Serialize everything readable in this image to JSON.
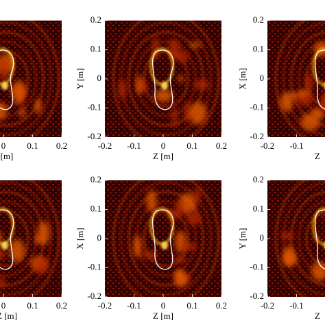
{
  "chart_data": [
    {
      "type": "heatmap",
      "xlim": [
        -0.2,
        0.2
      ],
      "ylim": [
        -0.2,
        0.2
      ],
      "xticks": [
        0,
        0.1,
        0.2
      ],
      "yticks": [],
      "xlabel": "[m]"
    },
    {
      "type": "heatmap",
      "xlim": [
        -0.2,
        0.2
      ],
      "ylim": [
        -0.2,
        0.2
      ],
      "xticks": [
        -0.2,
        -0.1,
        0,
        0.1,
        0.2
      ],
      "yticks": [
        0.2,
        0.1,
        0,
        -0.1,
        -0.2
      ],
      "xlabel": "Z [m]",
      "ylabel": "Y [m]"
    },
    {
      "type": "heatmap",
      "xlim": [
        -0.2,
        0.2
      ],
      "ylim": [
        -0.2,
        0.2
      ],
      "xticks": [
        -0.2,
        -0.1
      ],
      "yticks": [
        0.2,
        0.1,
        0,
        -0.1,
        -0.2
      ],
      "xlabel": "Z",
      "ylabel": "X [m]"
    },
    {
      "type": "heatmap",
      "xlim": [
        -0.2,
        0.2
      ],
      "ylim": [
        -0.2,
        0.2
      ],
      "xticks": [
        0,
        0.1,
        0.2
      ],
      "yticks": [],
      "xlabel": "Z [m]"
    },
    {
      "type": "heatmap",
      "xlim": [
        -0.2,
        0.2
      ],
      "ylim": [
        -0.2,
        0.2
      ],
      "xticks": [
        -0.2,
        -0.1,
        0,
        0.1,
        0.2
      ],
      "yticks": [
        0.2,
        0.1,
        0,
        -0.1,
        -0.2
      ],
      "xlabel": "Z [m]",
      "ylabel": "X [m]"
    },
    {
      "type": "heatmap",
      "xlim": [
        -0.2,
        0.2
      ],
      "ylim": [
        -0.2,
        0.2
      ],
      "xticks": [
        -0.2,
        -0.1
      ],
      "yticks": [
        0.2,
        0.1,
        0,
        -0.1,
        -0.2
      ],
      "xlabel": "Z",
      "ylabel": "Y [m]"
    }
  ]
}
